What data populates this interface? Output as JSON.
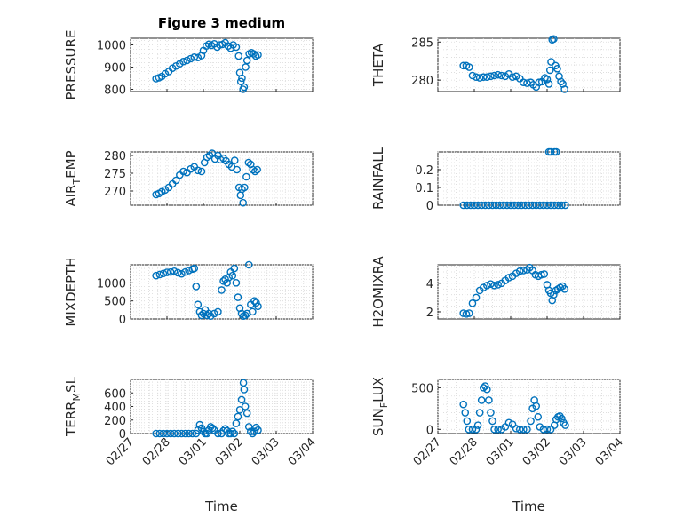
{
  "chart_data": [
    {
      "type": "scatter",
      "title": "Figure 3 medium",
      "ylabel": "PRESSURE",
      "ylim": [
        790,
        1030
      ],
      "yticks": [
        800,
        900,
        1000
      ],
      "xlim": [
        "02/27",
        "03/04"
      ],
      "grid": true,
      "color": "#0072bd",
      "points": [
        [
          0.7,
          848
        ],
        [
          0.78,
          852
        ],
        [
          0.86,
          858
        ],
        [
          0.95,
          870
        ],
        [
          1.05,
          880
        ],
        [
          1.15,
          895
        ],
        [
          1.25,
          905
        ],
        [
          1.35,
          915
        ],
        [
          1.45,
          925
        ],
        [
          1.55,
          930
        ],
        [
          1.65,
          938
        ],
        [
          1.75,
          945
        ],
        [
          1.85,
          943
        ],
        [
          1.95,
          952
        ],
        [
          2.0,
          975
        ],
        [
          2.08,
          995
        ],
        [
          2.15,
          1003
        ],
        [
          2.22,
          998
        ],
        [
          2.3,
          1005
        ],
        [
          2.38,
          990
        ],
        [
          2.45,
          1000
        ],
        [
          2.52,
          1002
        ],
        [
          2.6,
          1010
        ],
        [
          2.68,
          995
        ],
        [
          2.75,
          985
        ],
        [
          2.82,
          1000
        ],
        [
          2.9,
          990
        ],
        [
          2.97,
          950
        ],
        [
          3.0,
          875
        ],
        [
          3.03,
          835
        ],
        [
          3.06,
          850
        ],
        [
          3.09,
          800
        ],
        [
          3.12,
          810
        ],
        [
          3.16,
          900
        ],
        [
          3.2,
          930
        ],
        [
          3.26,
          960
        ],
        [
          3.32,
          965
        ],
        [
          3.38,
          960
        ],
        [
          3.44,
          950
        ],
        [
          3.5,
          955
        ]
      ]
    },
    {
      "type": "scatter",
      "ylabel": "THETA",
      "ylim": [
        278.5,
        285.5
      ],
      "yticks": [
        280,
        285
      ],
      "xlim": [
        "02/27",
        "03/04"
      ],
      "grid": true,
      "color": "#0072bd",
      "points": [
        [
          0.7,
          281.9
        ],
        [
          0.78,
          281.9
        ],
        [
          0.86,
          281.7
        ],
        [
          0.95,
          280.6
        ],
        [
          1.05,
          280.4
        ],
        [
          1.15,
          280.3
        ],
        [
          1.25,
          280.4
        ],
        [
          1.35,
          280.4
        ],
        [
          1.45,
          280.5
        ],
        [
          1.55,
          280.6
        ],
        [
          1.65,
          280.7
        ],
        [
          1.75,
          280.6
        ],
        [
          1.85,
          280.5
        ],
        [
          1.95,
          280.8
        ],
        [
          2.05,
          280.4
        ],
        [
          2.15,
          280.5
        ],
        [
          2.25,
          280.2
        ],
        [
          2.35,
          279.7
        ],
        [
          2.45,
          279.6
        ],
        [
          2.55,
          279.7
        ],
        [
          2.62,
          279.4
        ],
        [
          2.7,
          279.1
        ],
        [
          2.78,
          279.7
        ],
        [
          2.86,
          279.8
        ],
        [
          2.94,
          280.3
        ],
        [
          3.0,
          280.1
        ],
        [
          3.05,
          279.5
        ],
        [
          3.08,
          281.3
        ],
        [
          3.11,
          282.4
        ],
        [
          3.14,
          285.3
        ],
        [
          3.18,
          285.4
        ],
        [
          3.23,
          281.9
        ],
        [
          3.28,
          281.5
        ],
        [
          3.33,
          280.5
        ],
        [
          3.38,
          279.8
        ],
        [
          3.43,
          279.5
        ],
        [
          3.48,
          278.8
        ]
      ]
    },
    {
      "type": "scatter",
      "ylabel": "AIR_TEMP",
      "ylim": [
        266,
        281
      ],
      "yticks": [
        270,
        275,
        280
      ],
      "xlim": [
        "02/27",
        "03/04"
      ],
      "grid": true,
      "color": "#0072bd",
      "points": [
        [
          0.7,
          269
        ],
        [
          0.78,
          269.3
        ],
        [
          0.86,
          269.8
        ],
        [
          0.95,
          270.3
        ],
        [
          1.05,
          271
        ],
        [
          1.15,
          272
        ],
        [
          1.25,
          273
        ],
        [
          1.35,
          274.5
        ],
        [
          1.45,
          275.5
        ],
        [
          1.55,
          275.2
        ],
        [
          1.65,
          276.2
        ],
        [
          1.75,
          276.8
        ],
        [
          1.85,
          275.8
        ],
        [
          1.95,
          275.5
        ],
        [
          2.03,
          278
        ],
        [
          2.1,
          279.5
        ],
        [
          2.17,
          280
        ],
        [
          2.24,
          280.6
        ],
        [
          2.32,
          279
        ],
        [
          2.4,
          280
        ],
        [
          2.47,
          278.8
        ],
        [
          2.55,
          279.2
        ],
        [
          2.62,
          278.5
        ],
        [
          2.7,
          277.5
        ],
        [
          2.78,
          276.8
        ],
        [
          2.86,
          278.6
        ],
        [
          2.92,
          276
        ],
        [
          2.98,
          271
        ],
        [
          3.02,
          268.8
        ],
        [
          3.06,
          270.5
        ],
        [
          3.09,
          266.7
        ],
        [
          3.13,
          271
        ],
        [
          3.18,
          274
        ],
        [
          3.24,
          278
        ],
        [
          3.3,
          277.5
        ],
        [
          3.36,
          276
        ],
        [
          3.42,
          275.5
        ],
        [
          3.48,
          276
        ]
      ]
    },
    {
      "type": "scatter",
      "ylabel": "RAINFALL",
      "ylim": [
        0,
        0.3
      ],
      "yticks": [
        0,
        0.1,
        0.2
      ],
      "xlim": [
        "02/27",
        "03/04"
      ],
      "grid": true,
      "color": "#0072bd",
      "points": [
        [
          0.7,
          0
        ],
        [
          0.8,
          0
        ],
        [
          0.9,
          0
        ],
        [
          1.0,
          0
        ],
        [
          1.1,
          0
        ],
        [
          1.2,
          0
        ],
        [
          1.3,
          0
        ],
        [
          1.4,
          0
        ],
        [
          1.5,
          0
        ],
        [
          1.6,
          0
        ],
        [
          1.7,
          0
        ],
        [
          1.8,
          0
        ],
        [
          1.9,
          0
        ],
        [
          2.0,
          0
        ],
        [
          2.1,
          0
        ],
        [
          2.2,
          0
        ],
        [
          2.3,
          0
        ],
        [
          2.4,
          0
        ],
        [
          2.5,
          0
        ],
        [
          2.6,
          0
        ],
        [
          2.7,
          0
        ],
        [
          2.8,
          0
        ],
        [
          2.9,
          0
        ],
        [
          3.0,
          0
        ],
        [
          3.05,
          0.3
        ],
        [
          3.1,
          0.3
        ],
        [
          3.2,
          0.3
        ],
        [
          3.25,
          0.3
        ],
        [
          3.1,
          0
        ],
        [
          3.2,
          0
        ],
        [
          3.3,
          0
        ],
        [
          3.4,
          0
        ],
        [
          3.5,
          0
        ]
      ]
    },
    {
      "type": "scatter",
      "ylabel": "MIXDEPTH",
      "ylim": [
        0,
        1500
      ],
      "yticks": [
        0,
        500,
        1000
      ],
      "xlim": [
        "02/27",
        "03/04"
      ],
      "grid": true,
      "color": "#0072bd",
      "points": [
        [
          0.7,
          1200
        ],
        [
          0.8,
          1230
        ],
        [
          0.9,
          1260
        ],
        [
          1.0,
          1290
        ],
        [
          1.1,
          1300
        ],
        [
          1.2,
          1320
        ],
        [
          1.3,
          1280
        ],
        [
          1.4,
          1250
        ],
        [
          1.5,
          1300
        ],
        [
          1.6,
          1340
        ],
        [
          1.7,
          1380
        ],
        [
          1.75,
          1400
        ],
        [
          1.8,
          900
        ],
        [
          1.85,
          400
        ],
        [
          1.9,
          200
        ],
        [
          1.95,
          100
        ],
        [
          2.0,
          150
        ],
        [
          2.05,
          250
        ],
        [
          2.1,
          100
        ],
        [
          2.15,
          150
        ],
        [
          2.2,
          80
        ],
        [
          2.3,
          150
        ],
        [
          2.4,
          200
        ],
        [
          2.5,
          800
        ],
        [
          2.55,
          1050
        ],
        [
          2.6,
          1100
        ],
        [
          2.65,
          1000
        ],
        [
          2.7,
          1150
        ],
        [
          2.75,
          1300
        ],
        [
          2.8,
          1200
        ],
        [
          2.85,
          1400
        ],
        [
          2.9,
          1000
        ],
        [
          2.95,
          600
        ],
        [
          3.0,
          300
        ],
        [
          3.05,
          150
        ],
        [
          3.1,
          80
        ],
        [
          3.15,
          100
        ],
        [
          3.2,
          150
        ],
        [
          3.25,
          1500
        ],
        [
          3.3,
          400
        ],
        [
          3.35,
          200
        ],
        [
          3.4,
          500
        ],
        [
          3.45,
          450
        ],
        [
          3.5,
          350
        ]
      ]
    },
    {
      "type": "scatter",
      "ylabel": "H2OMIXRA",
      "ylim": [
        1.5,
        5.3
      ],
      "yticks": [
        2,
        4
      ],
      "xlim": [
        "02/27",
        "03/04"
      ],
      "grid": true,
      "color": "#0072bd",
      "points": [
        [
          0.7,
          1.9
        ],
        [
          0.78,
          1.85
        ],
        [
          0.86,
          1.9
        ],
        [
          0.95,
          2.6
        ],
        [
          1.05,
          3.0
        ],
        [
          1.15,
          3.5
        ],
        [
          1.25,
          3.7
        ],
        [
          1.35,
          3.85
        ],
        [
          1.45,
          3.95
        ],
        [
          1.55,
          3.85
        ],
        [
          1.65,
          3.9
        ],
        [
          1.75,
          4.0
        ],
        [
          1.85,
          4.2
        ],
        [
          1.95,
          4.4
        ],
        [
          2.05,
          4.5
        ],
        [
          2.15,
          4.7
        ],
        [
          2.25,
          4.85
        ],
        [
          2.35,
          4.9
        ],
        [
          2.45,
          4.95
        ],
        [
          2.52,
          5.1
        ],
        [
          2.6,
          4.9
        ],
        [
          2.68,
          4.6
        ],
        [
          2.76,
          4.5
        ],
        [
          2.84,
          4.6
        ],
        [
          2.92,
          4.65
        ],
        [
          3.0,
          3.9
        ],
        [
          3.05,
          3.5
        ],
        [
          3.1,
          3.3
        ],
        [
          3.14,
          2.8
        ],
        [
          3.18,
          3.2
        ],
        [
          3.24,
          3.5
        ],
        [
          3.3,
          3.6
        ],
        [
          3.36,
          3.7
        ],
        [
          3.42,
          3.8
        ],
        [
          3.48,
          3.6
        ]
      ]
    },
    {
      "type": "scatter",
      "ylabel": "TERR_MSL",
      "ylim": [
        0,
        800
      ],
      "yticks": [
        0,
        200,
        400,
        600
      ],
      "xlim": [
        "02/27",
        "03/04"
      ],
      "grid": true,
      "color": "#0072bd",
      "points": [
        [
          0.7,
          0
        ],
        [
          0.8,
          0
        ],
        [
          0.9,
          0
        ],
        [
          1.0,
          0
        ],
        [
          1.1,
          0
        ],
        [
          1.2,
          0
        ],
        [
          1.3,
          0
        ],
        [
          1.4,
          0
        ],
        [
          1.5,
          0
        ],
        [
          1.6,
          0
        ],
        [
          1.7,
          0
        ],
        [
          1.8,
          0
        ],
        [
          1.85,
          50
        ],
        [
          1.9,
          130
        ],
        [
          1.95,
          80
        ],
        [
          2.0,
          30
        ],
        [
          2.05,
          0
        ],
        [
          2.1,
          0
        ],
        [
          2.15,
          50
        ],
        [
          2.2,
          100
        ],
        [
          2.25,
          80
        ],
        [
          2.3,
          50
        ],
        [
          2.4,
          0
        ],
        [
          2.5,
          0
        ],
        [
          2.55,
          40
        ],
        [
          2.6,
          70
        ],
        [
          2.65,
          40
        ],
        [
          2.7,
          0
        ],
        [
          2.75,
          0
        ],
        [
          2.8,
          30
        ],
        [
          2.85,
          0
        ],
        [
          2.9,
          150
        ],
        [
          2.95,
          250
        ],
        [
          3.0,
          350
        ],
        [
          3.05,
          500
        ],
        [
          3.1,
          750
        ],
        [
          3.12,
          650
        ],
        [
          3.15,
          400
        ],
        [
          3.2,
          300
        ],
        [
          3.25,
          100
        ],
        [
          3.3,
          30
        ],
        [
          3.35,
          0
        ],
        [
          3.4,
          30
        ],
        [
          3.45,
          90
        ],
        [
          3.5,
          50
        ]
      ]
    },
    {
      "type": "scatter",
      "ylabel": "SUN_FLUX",
      "ylim": [
        -50,
        600
      ],
      "yticks": [
        0,
        500
      ],
      "xlim": [
        "02/27",
        "03/04"
      ],
      "grid": true,
      "color": "#0072bd",
      "points": [
        [
          0.7,
          300
        ],
        [
          0.75,
          200
        ],
        [
          0.8,
          100
        ],
        [
          0.85,
          0
        ],
        [
          0.95,
          0
        ],
        [
          1.05,
          0
        ],
        [
          1.1,
          50
        ],
        [
          1.15,
          200
        ],
        [
          1.2,
          350
        ],
        [
          1.25,
          500
        ],
        [
          1.3,
          520
        ],
        [
          1.35,
          480
        ],
        [
          1.4,
          350
        ],
        [
          1.45,
          200
        ],
        [
          1.5,
          100
        ],
        [
          1.55,
          0
        ],
        [
          1.65,
          0
        ],
        [
          1.75,
          0
        ],
        [
          1.85,
          30
        ],
        [
          1.95,
          80
        ],
        [
          2.05,
          60
        ],
        [
          2.15,
          10
        ],
        [
          2.25,
          0
        ],
        [
          2.35,
          0
        ],
        [
          2.45,
          0
        ],
        [
          2.55,
          100
        ],
        [
          2.6,
          250
        ],
        [
          2.65,
          350
        ],
        [
          2.7,
          280
        ],
        [
          2.75,
          150
        ],
        [
          2.8,
          30
        ],
        [
          2.9,
          0
        ],
        [
          3.0,
          0
        ],
        [
          3.1,
          0
        ],
        [
          3.2,
          50
        ],
        [
          3.25,
          120
        ],
        [
          3.3,
          150
        ],
        [
          3.35,
          160
        ],
        [
          3.4,
          130
        ],
        [
          3.45,
          80
        ],
        [
          3.5,
          50
        ]
      ]
    }
  ],
  "shared": {
    "xlabel": "Time",
    "xticklabels": [
      "02/27",
      "02/28",
      "03/01",
      "03/02",
      "03/03",
      "03/04"
    ]
  }
}
